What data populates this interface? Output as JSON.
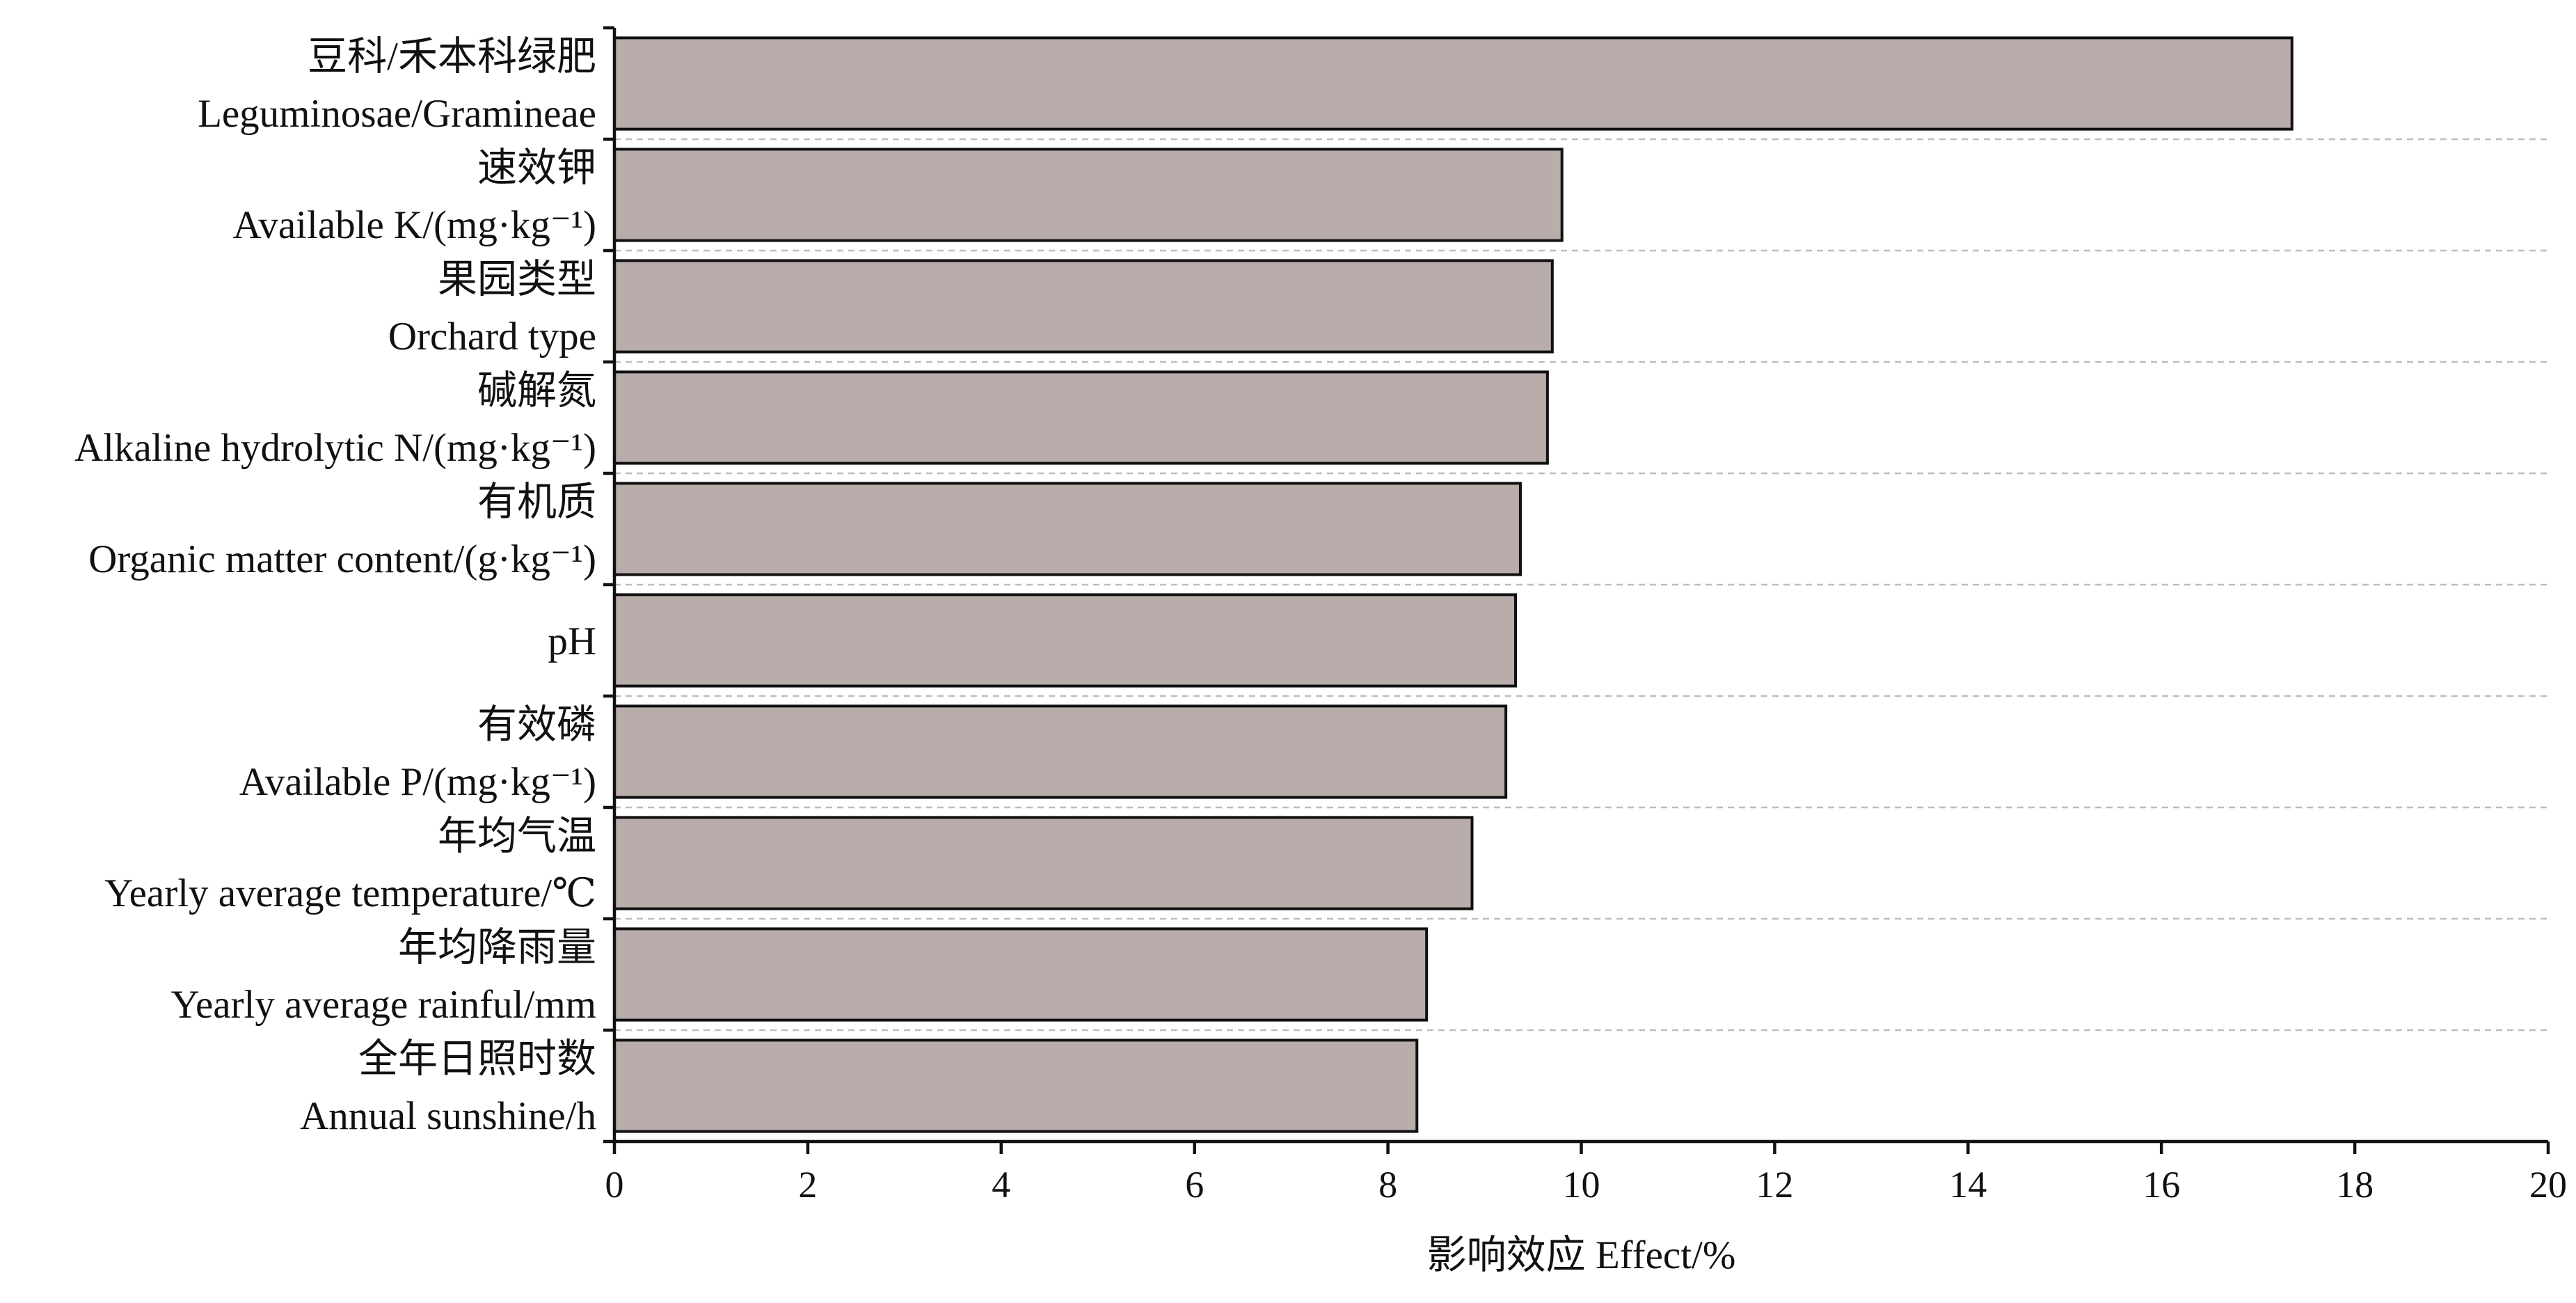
{
  "chart_data": {
    "type": "bar",
    "orientation": "horizontal",
    "title": "",
    "categories": [
      {
        "zh": "豆科/禾本科绿肥",
        "en": "Leguminosae/Gramineae"
      },
      {
        "zh": "速效钾",
        "en": "Available K/(mg·kg⁻¹)"
      },
      {
        "zh": "果园类型",
        "en": "Orchard type"
      },
      {
        "zh": "碱解氮",
        "en": "Alkaline hydrolytic N/(mg·kg⁻¹)"
      },
      {
        "zh": "有机质",
        "en": "Organic matter content/(g·kg⁻¹)"
      },
      {
        "zh": "",
        "en": "pH"
      },
      {
        "zh": "有效磷",
        "en": "Available P/(mg·kg⁻¹)"
      },
      {
        "zh": "年均气温",
        "en": "Yearly average temperature/℃"
      },
      {
        "zh": "年均降雨量",
        "en": "Yearly average rainful/mm"
      },
      {
        "zh": "全年日照时数",
        "en": "Annual sunshine/h"
      }
    ],
    "values": [
      17.35,
      9.8,
      9.7,
      9.65,
      9.37,
      9.32,
      9.22,
      8.87,
      8.4,
      8.3
    ],
    "xlabel": "影响效应  Effect/%",
    "ylabel": "",
    "xlim": [
      0,
      20
    ],
    "xticks": [
      "0",
      "2",
      "4",
      "6",
      "8",
      "10",
      "12",
      "14",
      "16",
      "18",
      "20"
    ],
    "grid": "dashed separators between categories",
    "legend": "none",
    "bar_color": "#b8adab",
    "edge_color": "#111111"
  }
}
